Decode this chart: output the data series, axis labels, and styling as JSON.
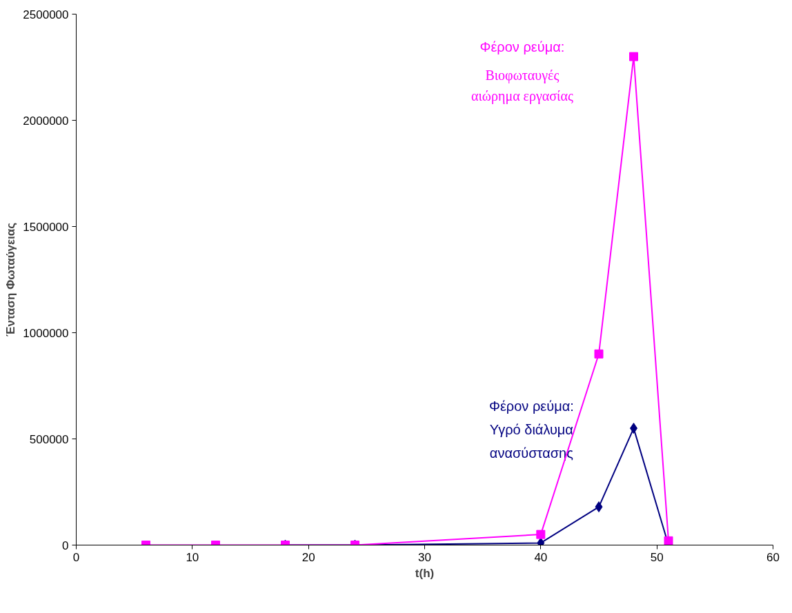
{
  "chart_data": {
    "type": "line",
    "xlabel": "t(h)",
    "ylabel": "Ένταση Φωταύγειας",
    "x": [
      6,
      12,
      18,
      24,
      40,
      45,
      48,
      51
    ],
    "series": [
      {
        "name": "Φέρον ρεύμα:\nΒιοφωταυγές\nαιώρημα εργασίας",
        "color": "#ff00ff",
        "marker": "square",
        "values": [
          0,
          0,
          0,
          0,
          50000,
          900000,
          2300000,
          20000
        ]
      },
      {
        "name": "Φέρον ρεύμα:\nΥγρό διάλυμα\nανασύστασης",
        "color": "#000080",
        "marker": "diamond",
        "values": [
          null,
          null,
          0,
          0,
          10000,
          180000,
          550000,
          0
        ]
      }
    ],
    "xlim": [
      0,
      60
    ],
    "xticks": [
      0,
      10,
      20,
      30,
      40,
      50,
      60
    ],
    "ylim": [
      0,
      2500000
    ],
    "yticks": [
      0,
      500000,
      1000000,
      1500000,
      2000000,
      2500000
    ],
    "grid": false
  }
}
